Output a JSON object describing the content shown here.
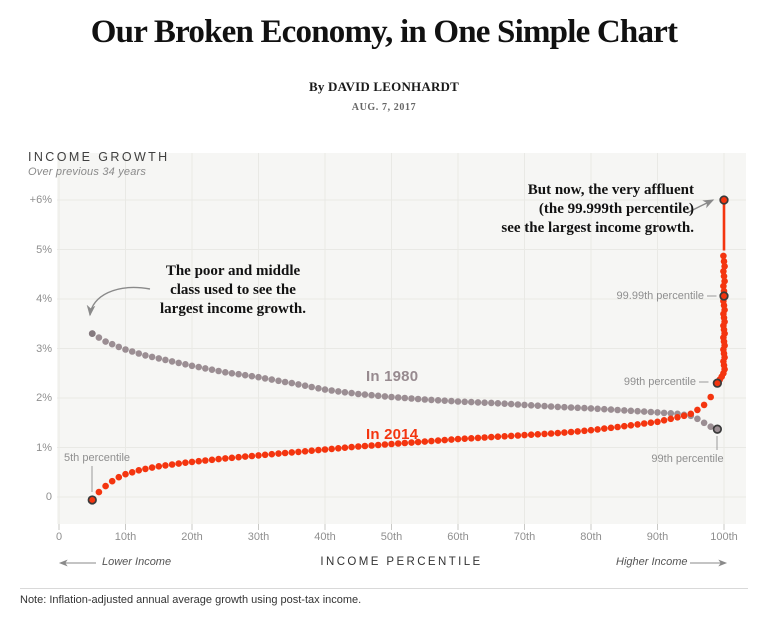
{
  "header": {
    "title": "Our Broken Economy, in One Simple Chart",
    "byline": "By DAVID LEONHARDT",
    "date": "AUG. 7, 2017"
  },
  "axis": {
    "y_title": "INCOME GROWTH",
    "y_subtitle": "Over previous 34 years",
    "x_title": "INCOME PERCENTILE",
    "x_left": "Lower Income",
    "x_right": "Higher Income"
  },
  "annotations": {
    "past": "The poor and middle\nclass used to see the\nlargest income growth.",
    "now": "But now, the very affluent\n(the 99.999th percentile)\nsee the largest income growth."
  },
  "series_labels": {
    "s1980": "In 1980",
    "s2014": "In 2014"
  },
  "callouts": {
    "p5": "5th percentile",
    "p9999": "99.99th percentile",
    "p99_red": "99th percentile",
    "p99_gray": "99th percentile"
  },
  "note": "Note: Inflation-adjusted annual average growth using post-tax income.",
  "colors": {
    "red": "#f4350f",
    "gray": "#9b8e93",
    "gray_start": "#857a7f",
    "highlight_ring": "#3a3a3a",
    "plot_bg": "#f6f6f4",
    "gridline": "#e9e9e5",
    "tick": "#c9c9c6",
    "leader": "#9a9a9a",
    "arrow": "#8a8a8a"
  },
  "chart_data": {
    "type": "scatter",
    "title": "Our Broken Economy, in One Simple Chart",
    "xlabel": "Income percentile",
    "ylabel": "Income growth over previous 34 years (%)",
    "x_tick_labels": [
      "0",
      "10th",
      "20th",
      "30th",
      "40th",
      "50th",
      "60th",
      "70th",
      "80th",
      "90th",
      "100th"
    ],
    "x_tick_percentiles": [
      0,
      10,
      20,
      30,
      40,
      50,
      60,
      70,
      80,
      90,
      100
    ],
    "y_tick_labels": [
      "0",
      "1%",
      "2%",
      "3%",
      "4%",
      "5%",
      "+6%"
    ],
    "y_tick_values": [
      0,
      1,
      2,
      3,
      4,
      5,
      6
    ],
    "grid": true,
    "legend_position": "inline-labels",
    "dot_interval": 1,
    "series": [
      {
        "name": "In 1980",
        "color_key": "gray",
        "range": [
          5,
          99
        ],
        "control_points": [
          [
            5,
            3.3
          ],
          [
            7,
            3.14
          ],
          [
            10,
            2.98
          ],
          [
            13,
            2.86
          ],
          [
            15,
            2.8
          ],
          [
            20,
            2.65
          ],
          [
            25,
            2.52
          ],
          [
            30,
            2.42
          ],
          [
            35,
            2.3
          ],
          [
            40,
            2.17
          ],
          [
            45,
            2.08
          ],
          [
            50,
            2.02
          ],
          [
            55,
            1.97
          ],
          [
            60,
            1.93
          ],
          [
            65,
            1.9
          ],
          [
            70,
            1.86
          ],
          [
            75,
            1.82
          ],
          [
            80,
            1.79
          ],
          [
            85,
            1.75
          ],
          [
            90,
            1.71
          ],
          [
            93,
            1.68
          ],
          [
            95,
            1.64
          ],
          [
            96,
            1.58
          ],
          [
            97,
            1.5
          ],
          [
            98,
            1.42
          ],
          [
            99,
            1.37
          ]
        ]
      },
      {
        "name": "In 2014",
        "color_key": "red",
        "range": [
          5,
          99
        ],
        "control_points": [
          [
            5,
            -0.06
          ],
          [
            6,
            0.1
          ],
          [
            7,
            0.22
          ],
          [
            8,
            0.32
          ],
          [
            9,
            0.4
          ],
          [
            10,
            0.46
          ],
          [
            12,
            0.54
          ],
          [
            15,
            0.62
          ],
          [
            20,
            0.71
          ],
          [
            25,
            0.78
          ],
          [
            30,
            0.84
          ],
          [
            35,
            0.9
          ],
          [
            40,
            0.96
          ],
          [
            45,
            1.02
          ],
          [
            50,
            1.07
          ],
          [
            55,
            1.12
          ],
          [
            60,
            1.17
          ],
          [
            65,
            1.21
          ],
          [
            70,
            1.25
          ],
          [
            75,
            1.29
          ],
          [
            80,
            1.35
          ],
          [
            85,
            1.43
          ],
          [
            90,
            1.52
          ],
          [
            92,
            1.58
          ],
          [
            94,
            1.64
          ],
          [
            95,
            1.68
          ],
          [
            96,
            1.76
          ],
          [
            97,
            1.86
          ],
          [
            98,
            2.02
          ],
          [
            99,
            2.3
          ]
        ],
        "tail": [
          [
            99.35,
            2.37
          ],
          [
            99.65,
            2.43
          ]
        ],
        "spike_percentile": 100,
        "spike_values": [
          2.5,
          2.58,
          2.66,
          2.74,
          2.82,
          2.9,
          2.98,
          3.06,
          3.14,
          3.22,
          3.3,
          3.38,
          3.46,
          3.54,
          3.62,
          3.7,
          3.78,
          3.87,
          3.96,
          4.06,
          4.16,
          4.26,
          4.36,
          4.46,
          4.56,
          4.66,
          4.76,
          4.87
        ],
        "spike_line_values": [
          4.98,
          5.93
        ],
        "peak": [
          100,
          6.0
        ]
      }
    ],
    "highlighted_points": [
      {
        "series": "In 2014",
        "x": 5,
        "y": -0.06,
        "label": "5th percentile"
      },
      {
        "series": "In 2014",
        "x": 99,
        "y": 2.3,
        "label": "99th percentile"
      },
      {
        "series": "In 2014",
        "x": 100,
        "y": 4.06,
        "label": "99.99th percentile"
      },
      {
        "series": "In 2014",
        "x": 100,
        "y": 6.0,
        "label": "99.999th percentile"
      },
      {
        "series": "In 1980",
        "x": 99,
        "y": 1.37,
        "label": "99th percentile"
      }
    ]
  }
}
